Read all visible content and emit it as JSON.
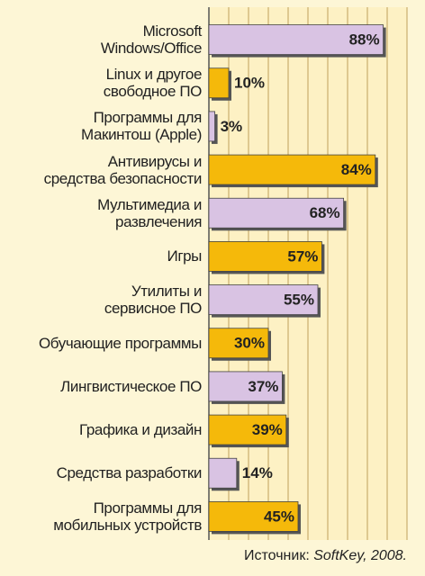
{
  "chart_data": {
    "type": "bar",
    "orientation": "horizontal",
    "categories": [
      "Microsoft\nWindows/Office",
      "Linux и другое\nсвободное ПО",
      "Программы для\nМакинтош (Apple)",
      "Антивирусы и\nсредства безопасности",
      "Мультимедиа и\nразвлечения",
      "Игры",
      "Утилиты и\nсервисное ПО",
      "Обучающие программы",
      "Лингвистическое ПО",
      "Графика и дизайн",
      "Средства разработки",
      "Программы для\nмобильных устройств"
    ],
    "values": [
      88,
      10,
      3,
      84,
      68,
      57,
      55,
      30,
      37,
      39,
      14,
      45
    ],
    "value_labels": [
      "88%",
      "10%",
      "3%",
      "84%",
      "68%",
      "57%",
      "55%",
      "30%",
      "37%",
      "39%",
      "14%",
      "45%"
    ],
    "colors": [
      "#d9c3e3",
      "#f5b90a"
    ],
    "xlim": [
      0,
      100
    ],
    "xticks": [
      0,
      10,
      20,
      30,
      40,
      50,
      60,
      70,
      80,
      90,
      100
    ],
    "grid": true,
    "source_label": "Источник:",
    "source": "SoftKey, 2008."
  }
}
